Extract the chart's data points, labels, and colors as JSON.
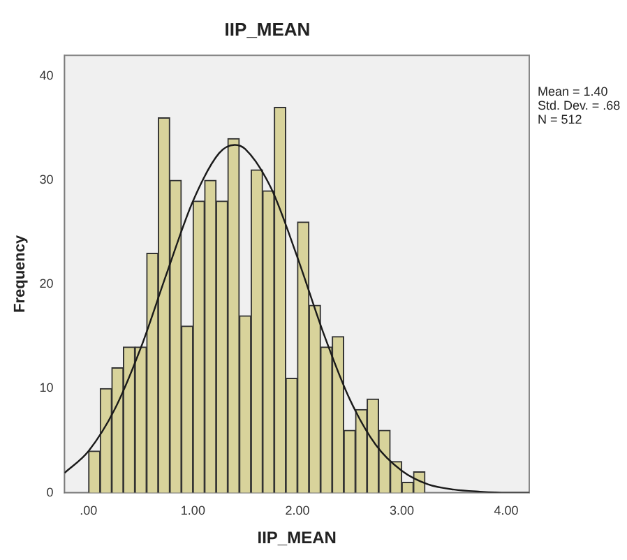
{
  "chart_data": {
    "type": "histogram",
    "title": "IIP_MEAN",
    "xlabel": "IIP_MEAN",
    "ylabel": "Frequency",
    "annotations": [
      "Mean = 1.40",
      "Std. Dev. = .68",
      "N = 512"
    ],
    "bins": [
      0,
      0.111,
      0.222,
      0.333,
      0.444,
      0.556,
      0.667,
      0.778,
      0.889,
      1,
      1.111,
      1.222,
      1.333,
      1.444,
      1.556,
      1.667,
      1.778,
      1.889,
      2,
      2.111,
      2.222,
      2.333,
      2.444,
      2.556,
      2.667,
      2.778,
      2.889,
      3,
      3.111,
      3.222
    ],
    "values": [
      4,
      10,
      12,
      14,
      14,
      23,
      36,
      30,
      16,
      28,
      30,
      28,
      34,
      17,
      31,
      29,
      37,
      11,
      26,
      18,
      14,
      15,
      6,
      8,
      9,
      6,
      3,
      1,
      2
    ],
    "color": "#d8d39b",
    "series": [
      {
        "type": "line",
        "color": "#1a1a1a",
        "x": [
          -0.23,
          0,
          0.25,
          0.5,
          0.75,
          1,
          1.25,
          1.4,
          1.5,
          1.75,
          2,
          2.25,
          2.5,
          2.75,
          3,
          3.25,
          3.5,
          3.75,
          4,
          4.22
        ],
        "values": [
          1.9,
          4,
          8,
          13.9,
          21.1,
          28,
          32.6,
          33.4,
          33,
          29.2,
          22.6,
          15.3,
          9,
          4.6,
          2.1,
          0.8,
          0.3,
          0.1,
          0,
          0
        ]
      }
    ],
    "xlim": [
      -0.23,
      4.22
    ],
    "xticks": [
      {
        "value": 0,
        "label": ".00"
      },
      {
        "value": 1,
        "label": "1.00"
      },
      {
        "value": 2,
        "label": "2.00"
      },
      {
        "value": 3,
        "label": "3.00"
      },
      {
        "value": 4,
        "label": "4.00"
      }
    ],
    "ylim": [
      0,
      42
    ],
    "yticks": [
      0,
      10,
      20,
      30,
      40
    ],
    "grid": false,
    "legend": false
  }
}
